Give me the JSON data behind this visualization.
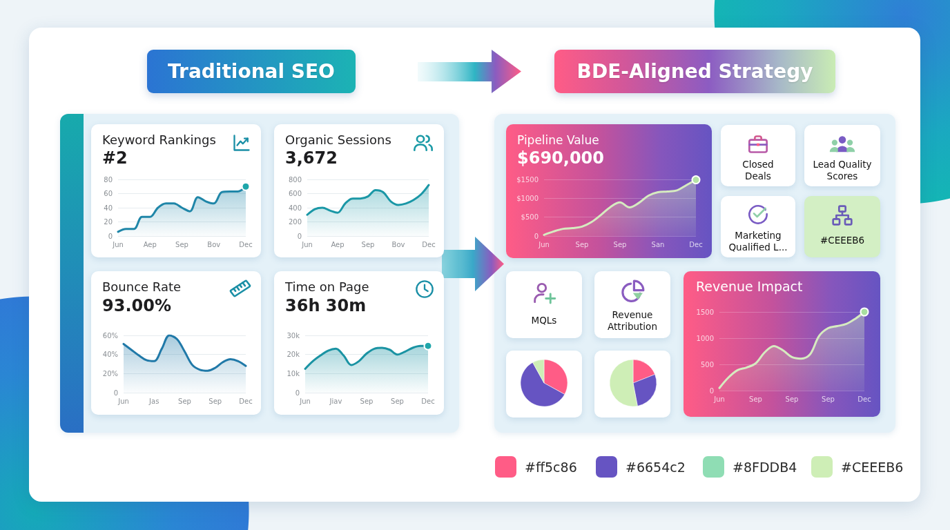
{
  "chart_data": [
    {
      "type": "other",
      "annotations": [
        "Traditional SEO",
        "BDE-Aligned Strategy"
      ]
    },
    {
      "type": "area",
      "title": "Keyword Rankings",
      "subtitle": "#2",
      "categories": [
        "Jun",
        null,
        null,
        null,
        "Aep",
        null,
        null,
        null,
        "Sep",
        null,
        null,
        null,
        "Bov",
        null,
        null,
        null,
        "Dec"
      ],
      "series": [
        {
          "color": "#1f86a8",
          "values": [
            6,
            10,
            10,
            27,
            27,
            40,
            46,
            46,
            40,
            35,
            55,
            49,
            46,
            62,
            63,
            63,
            70
          ]
        },
        {
          "type": "scatter",
          "color": "#1fa6aa",
          "x": [
            "Dec"
          ],
          "values": [
            70
          ]
        }
      ],
      "ylim": [
        0,
        80
      ],
      "yticks": [
        0,
        20,
        40,
        60,
        80
      ],
      "grid": "y"
    },
    {
      "type": "area",
      "title": "Organic Sessions",
      "subtitle": "3,672",
      "categories": [
        "Jun",
        null,
        null,
        null,
        "Aep",
        null,
        null,
        null,
        "Sep",
        null,
        null,
        null,
        "Bov",
        null,
        null,
        null,
        "Dec"
      ],
      "series": [
        {
          "color": "#1a97a6",
          "values": [
            300,
            380,
            400,
            360,
            330,
            460,
            530,
            530,
            560,
            650,
            620,
            490,
            440,
            460,
            510,
            590,
            720
          ]
        }
      ],
      "ylim": [
        0,
        800
      ],
      "yticks": [
        0,
        200,
        400,
        600,
        800
      ],
      "grid": "y"
    },
    {
      "type": "area",
      "title": "Pipeline Value",
      "subtitle": "$690,000",
      "categories": [
        "Jun",
        null,
        null,
        null,
        "Sep",
        null,
        null,
        null,
        "Sep",
        null,
        null,
        null,
        "San",
        null,
        null,
        null,
        "Dec"
      ],
      "series": [
        {
          "color": "#d6ebc0",
          "values": [
            30,
            120,
            190,
            210,
            250,
            370,
            560,
            770,
            890,
            760,
            880,
            1070,
            1160,
            1180,
            1210,
            1350,
            1490
          ]
        },
        {
          "type": "scatter",
          "color": "#b5e3a6",
          "x": [
            "Dec"
          ],
          "values": [
            1490
          ]
        }
      ],
      "ylim": [
        0,
        1500
      ],
      "yticks": [
        0,
        {
          "value": 500,
          "label": "$500"
        },
        {
          "value": 1000,
          "label": "$1000"
        },
        {
          "value": 1500,
          "label": "$1500"
        }
      ],
      "grid": "y"
    },
    {
      "type": "other",
      "annotations": [
        "Closed Deals",
        "Lead Quality Scores",
        "Marketing Qualified L...",
        "#CEEEB6"
      ]
    },
    {
      "type": "area",
      "title": "Bounce Rate",
      "subtitle": "93.00%",
      "categories": [
        "Jun",
        null,
        null,
        null,
        "Jas",
        null,
        null,
        null,
        "Sep",
        null,
        null,
        null,
        "Sep",
        null,
        null,
        null,
        "Dec"
      ],
      "series": [
        {
          "color": "#2079a8",
          "values": [
            51,
            45,
            39,
            34,
            33,
            46,
            60,
            56,
            43,
            29,
            24,
            23,
            26,
            32,
            35,
            33,
            28
          ]
        }
      ],
      "ylim": [
        0,
        60
      ],
      "yticks": [
        0,
        {
          "value": 20,
          "label": "20%"
        },
        {
          "value": 40,
          "label": "40%"
        },
        {
          "value": 60,
          "label": "60%"
        }
      ],
      "grid": "y"
    },
    {
      "type": "area",
      "title": "Time on Page",
      "subtitle": "36h 30m",
      "categories": [
        "Jun",
        null,
        null,
        null,
        "Jiav",
        null,
        null,
        null,
        "Sep",
        null,
        null,
        null,
        "Sep",
        null,
        null,
        null,
        "Dec"
      ],
      "series": [
        {
          "color": "#1a93a3",
          "values": [
            12500,
            16500,
            19500,
            22000,
            23000,
            19500,
            14500,
            16500,
            20500,
            23000,
            23500,
            22500,
            20000,
            21500,
            23500,
            24500,
            24500
          ]
        },
        {
          "type": "scatter",
          "color": "#1fa6aa",
          "x": [
            "Dec"
          ],
          "values": [
            24500
          ]
        }
      ],
      "ylim": [
        0,
        30000
      ],
      "yticks": [
        0,
        {
          "value": 10000,
          "label": "10k"
        },
        {
          "value": 20000,
          "label": "20k"
        },
        {
          "value": 30000,
          "label": "30k"
        }
      ],
      "grid": "y"
    },
    {
      "type": "other",
      "annotations": [
        "MQLs",
        "Revenue Attribution"
      ]
    },
    {
      "type": "area",
      "title": "Revenue Impact",
      "categories": [
        "Jun",
        null,
        null,
        null,
        "Sep",
        null,
        null,
        null,
        "Sep",
        null,
        null,
        null,
        "Sep",
        null,
        null,
        null,
        "Dec"
      ],
      "series": [
        {
          "color": "#d6ebc0",
          "values": [
            50,
            250,
            390,
            440,
            520,
            730,
            850,
            770,
            640,
            610,
            690,
            1040,
            1190,
            1230,
            1270,
            1370,
            1500
          ]
        },
        {
          "type": "scatter",
          "color": "#a8dfa0",
          "x": [
            "Dec"
          ],
          "values": [
            1500
          ]
        }
      ],
      "ylim": [
        0,
        1500
      ],
      "yticks": [
        0,
        500,
        1000,
        1500
      ],
      "grid": "y"
    },
    {
      "type": "pie",
      "categories": [
        null,
        null,
        null
      ],
      "values": [
        33,
        59,
        8
      ],
      "colors": [
        "#ff5c86",
        "#6654c2",
        "#ceeeb6"
      ]
    },
    {
      "type": "pie",
      "categories": [
        null,
        null,
        null
      ],
      "values": [
        19,
        28,
        53
      ],
      "colors": [
        "#ff5c86",
        "#6654c2",
        "#ceeeb6"
      ]
    },
    {
      "type": "other",
      "annotations": [
        "#ff5c86",
        "#6654c2",
        "#8FDDB4",
        "#CEEEB6"
      ],
      "colors": [
        "#ff5c86",
        "#6654c2",
        "#8fddb4",
        "#ceeeb6"
      ]
    }
  ]
}
